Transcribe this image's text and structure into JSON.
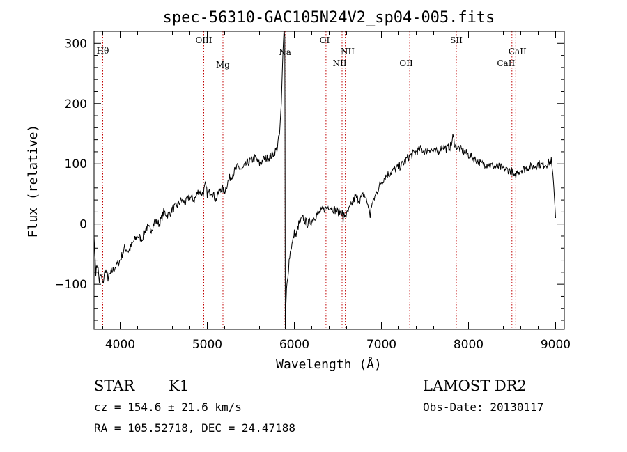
{
  "chart_data": {
    "type": "line",
    "title": "spec-56310-GAC105N24V2_sp04-005.fits",
    "xlabel": "Wavelength (Å)",
    "ylabel": "Flux (relative)",
    "xlim": [
      3700,
      9100
    ],
    "ylim": [
      -175,
      320
    ],
    "x_ticks": [
      4000,
      5000,
      6000,
      7000,
      8000,
      9000
    ],
    "y_ticks": [
      -100,
      0,
      100,
      200,
      300
    ],
    "grid": false,
    "spectrum_color": "#000000",
    "line_marker_color": "#c00000",
    "series": [
      {
        "x": [
          3700,
          3720,
          3740,
          3760,
          3780,
          3800,
          3830,
          3860,
          3900,
          3950,
          4000,
          4050,
          4100,
          4150,
          4200,
          4250,
          4300,
          4350,
          4400,
          4450,
          4500,
          4550,
          4600,
          4650,
          4700,
          4750,
          4800,
          4850,
          4900,
          4950,
          4980,
          5000,
          5050,
          5100,
          5150,
          5200,
          5250,
          5300,
          5350,
          5400,
          5450,
          5500,
          5550,
          5600,
          5650,
          5700,
          5750,
          5800,
          5830,
          5850,
          5870,
          5880,
          5890,
          5893,
          5896,
          5900,
          5905,
          5910,
          5920,
          5940,
          5960,
          5980,
          6000,
          6020,
          6050,
          6100,
          6150,
          6200,
          6250,
          6300,
          6350,
          6400,
          6450,
          6500,
          6550,
          6560,
          6570,
          6600,
          6650,
          6700,
          6750,
          6800,
          6850,
          6870,
          6880,
          6900,
          6950,
          7000,
          7050,
          7100,
          7150,
          7200,
          7250,
          7300,
          7350,
          7400,
          7450,
          7500,
          7550,
          7600,
          7650,
          7700,
          7750,
          7800,
          7820,
          7850,
          7900,
          7950,
          8000,
          8050,
          8100,
          8150,
          8200,
          8250,
          8300,
          8350,
          8400,
          8450,
          8500,
          8530,
          8550,
          8600,
          8650,
          8700,
          8750,
          8800,
          8850,
          8900,
          8950,
          8980,
          9000
        ],
        "y": [
          -20,
          -80,
          -65,
          -95,
          -85,
          -100,
          -75,
          -90,
          -80,
          -70,
          -60,
          -40,
          -45,
          -30,
          -20,
          -25,
          -5,
          -10,
          5,
          0,
          20,
          15,
          25,
          30,
          40,
          35,
          45,
          40,
          55,
          50,
          65,
          50,
          55,
          40,
          60,
          55,
          75,
          85,
          95,
          90,
          100,
          105,
          110,
          100,
          108,
          110,
          115,
          125,
          150,
          200,
          290,
          320,
          310,
          150,
          -175,
          -140,
          -130,
          -110,
          -95,
          -60,
          -40,
          -30,
          -15,
          -20,
          0,
          10,
          0,
          5,
          15,
          20,
          25,
          30,
          25,
          20,
          20,
          5,
          15,
          15,
          30,
          45,
          40,
          50,
          30,
          10,
          30,
          35,
          55,
          70,
          80,
          85,
          90,
          95,
          100,
          110,
          115,
          120,
          125,
          120,
          125,
          120,
          120,
          130,
          125,
          130,
          145,
          130,
          125,
          120,
          115,
          110,
          105,
          100,
          100,
          98,
          95,
          95,
          92,
          90,
          88,
          75,
          85,
          90,
          92,
          95,
          95,
          100,
          98,
          100,
          105,
          60,
          10
        ]
      }
    ],
    "spectral_lines": [
      {
        "label": "Hθ",
        "x": 3800
      },
      {
        "label": "OIII",
        "x": 4960
      },
      {
        "label": "Mg",
        "x": 5180
      },
      {
        "label": "Na",
        "x": 5893
      },
      {
        "label": "OI",
        "x": 6363
      },
      {
        "label": "NII",
        "x": 6548
      },
      {
        "label": "NII",
        "x": 6585
      },
      {
        "label": "OII",
        "x": 7325
      },
      {
        "label": "SII",
        "x": 7860
      },
      {
        "label": "CaII",
        "x": 8498
      },
      {
        "label": "CaII",
        "x": 8542
      }
    ]
  },
  "info": {
    "class": "STAR",
    "subclass": "K1",
    "cz": "cz = 154.6 ± 21.6 km/s",
    "survey": "LAMOST DR2",
    "obs_date": "Obs-Date: 20130117",
    "coords": "RA = 105.52718, DEC =  24.47188"
  }
}
